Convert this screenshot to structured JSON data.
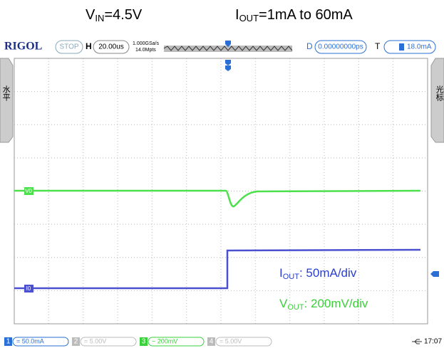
{
  "header": {
    "vin": {
      "base": "V",
      "sub": "IN",
      "text": "=4.5V"
    },
    "iout": {
      "base": "I",
      "sub": "OUT",
      "text": "=1mA to 60mA"
    }
  },
  "toolbar": {
    "brand": "RIGOL",
    "status": "STOP",
    "h_label": "H",
    "timebase": "20.00us",
    "sample_rate": "1.000GSa/s",
    "memory": "14.0Mpts",
    "d_label": "D",
    "delay": "0.00000000ps",
    "t_label": "T",
    "trigger_level": "18.0mA"
  },
  "side_tabs": {
    "left": "水平",
    "right": "光标"
  },
  "markers": {
    "v0": "V0",
    "i0": "I0"
  },
  "annotations": [
    {
      "base": "I",
      "sub": "OUT",
      "text": ": 50mA/div"
    },
    {
      "base": "V",
      "sub": "OUT",
      "text": ": 200mV/div"
    }
  ],
  "channels": [
    {
      "number": "1",
      "setting": "= 50.0mA"
    },
    {
      "number": "2",
      "setting": "= 5.00V"
    },
    {
      "number": "3",
      "setting": "~ 200mV"
    },
    {
      "number": "4",
      "setting": "= 5.00V"
    }
  ],
  "clock": "17:07"
}
